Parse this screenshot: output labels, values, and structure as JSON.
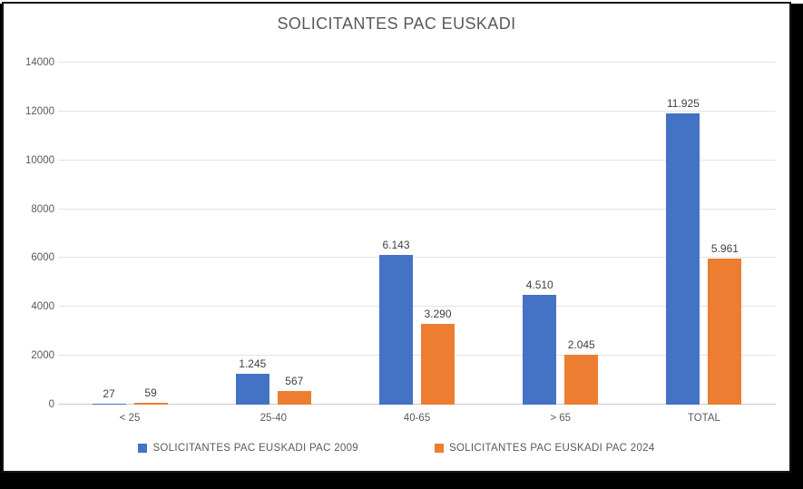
{
  "chart_data": {
    "type": "bar",
    "title": "SOLICITANTES PAC EUSKADI",
    "categories": [
      "< 25",
      "25-40",
      "40-65",
      "> 65",
      "TOTAL"
    ],
    "series": [
      {
        "name": "SOLICITANTES PAC EUSKADI PAC 2009",
        "color": "#4472C4",
        "values": [
          27,
          1245,
          6143,
          4510,
          11925
        ],
        "value_labels": [
          "27",
          "1.245",
          "6.143",
          "4.510",
          "11.925"
        ]
      },
      {
        "name": "SOLICITANTES PAC EUSKADI PAC 2024",
        "color": "#ED7D31",
        "values": [
          59,
          567,
          3290,
          2045,
          5961
        ],
        "value_labels": [
          "59",
          "567",
          "3.290",
          "2.045",
          "5.961"
        ]
      }
    ],
    "y_axis": {
      "min": 0,
      "max": 14000,
      "step": 2000,
      "tick_labels": [
        "0",
        "2000",
        "4000",
        "6000",
        "8000",
        "10000",
        "12000",
        "14000"
      ]
    },
    "grid": true,
    "legend_position": "bottom",
    "colors": {
      "plot_background": "#ffffff",
      "gridline": "#e2e2e2",
      "axis_line": "#c9c9c9",
      "text": "#595959",
      "data_label": "#404040",
      "frame_border": "#151515",
      "frame_shadow": "#000000"
    }
  }
}
